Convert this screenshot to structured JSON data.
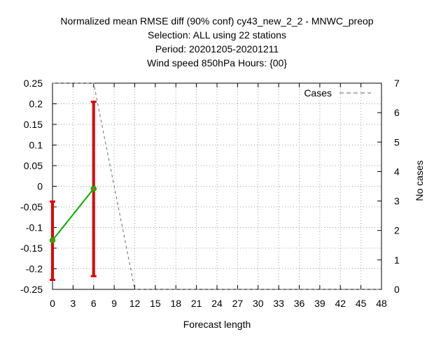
{
  "chart_data": {
    "type": "line",
    "title_lines": [
      "Normalized mean RMSE diff (90% conf) cy43_new_2_2 - MNWC_preop",
      "Selection: ALL using    22 stations",
      "Period: 20201205-20201211",
      "Wind speed 850hPa   Hours: {00}"
    ],
    "xlabel": "Forecast length",
    "ylabel_left": "",
    "ylabel_right": "No cases",
    "xlim": [
      0,
      48
    ],
    "ylim_left": [
      -0.25,
      0.25
    ],
    "ylim_right": [
      0,
      7
    ],
    "x_ticks": [
      0,
      3,
      6,
      9,
      12,
      15,
      18,
      21,
      24,
      27,
      30,
      33,
      36,
      39,
      42,
      45,
      48
    ],
    "y_ticks_left": [
      "0.25",
      "0.2",
      "0.15",
      "0.1",
      "0.05",
      "0",
      "-0.05",
      "-0.1",
      "-0.15",
      "-0.2",
      "-0.25"
    ],
    "y_ticks_right": [
      "7",
      "6",
      "5",
      "4",
      "3",
      "2",
      "1",
      "0"
    ],
    "grid": true,
    "legend_position": "top-right",
    "series": [
      {
        "name": "",
        "axis": "left",
        "color": "#00b000",
        "marker_color": "#808000",
        "x": [
          0,
          6
        ],
        "y": [
          -0.131,
          -0.006
        ],
        "ci_low": [
          -0.227,
          -0.218
        ],
        "ci_high": [
          -0.037,
          0.205
        ],
        "ci_color": "#e00000"
      },
      {
        "name": "Cases",
        "axis": "right",
        "color": "#808080",
        "dashed": true,
        "x": [
          0,
          3,
          6,
          9,
          12,
          15,
          18,
          21,
          24,
          27,
          30,
          33,
          36,
          39,
          42,
          45,
          48
        ],
        "y": [
          7,
          7,
          7,
          3.5,
          0,
          0,
          0,
          0,
          0,
          0,
          0,
          0,
          0,
          0,
          0,
          0,
          0
        ]
      }
    ]
  }
}
